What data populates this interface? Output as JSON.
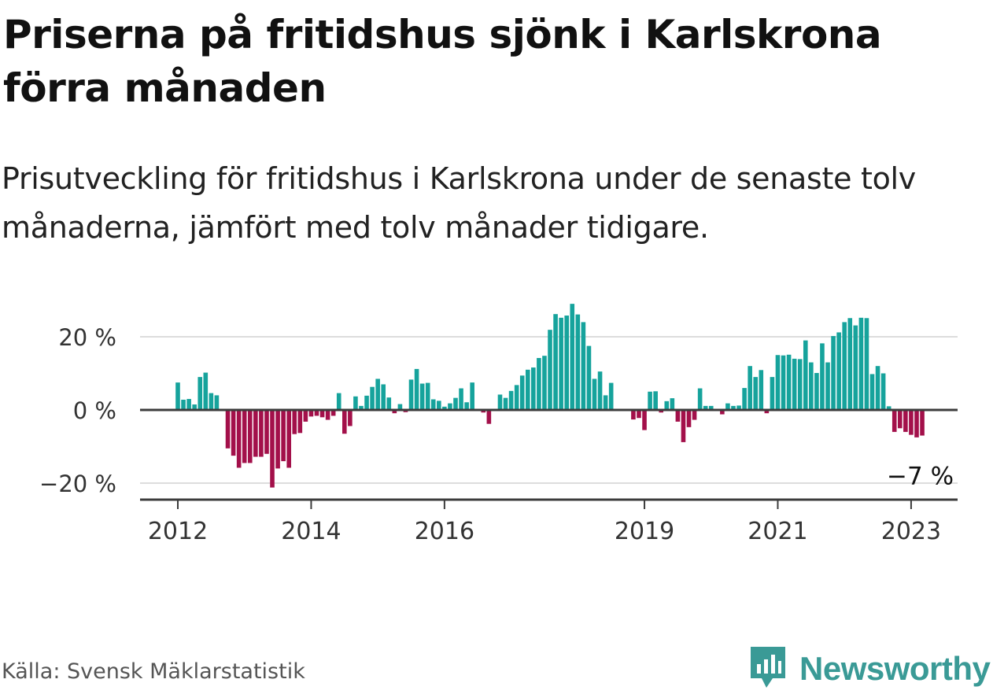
{
  "title": "Priserna på fritidshus sjönk i Karlskrona förra månaden",
  "subtitle": "Prisutveckling för fritidshus i Karlskrona under de senaste tolv månaderna, jämfört med tolv månader tidigare.",
  "source": "Källa: Svensk Mäklarstatistik",
  "brand": "Newsworthy",
  "colors": {
    "positive": "#16a39c",
    "negative": "#a3104a",
    "brand": "#3a9a96"
  },
  "icons": {
    "brand_logo": "bar-chart-speech-bubble-icon"
  },
  "chart_data": {
    "type": "bar",
    "title": "",
    "xlabel": "",
    "ylabel": "",
    "ylim": [
      -25,
      30
    ],
    "yticks": [
      {
        "value": 20,
        "label": "20 %"
      },
      {
        "value": 0,
        "label": "0 %"
      },
      {
        "value": -20,
        "label": "−20 %"
      }
    ],
    "xticks": [
      "2012",
      "2014",
      "2016",
      "2019",
      "2021",
      "2023"
    ],
    "start_month": "2012-01",
    "grid": true,
    "last_label": "−7 %",
    "values": [
      7.5,
      2.8,
      3.0,
      1.5,
      9.0,
      10.2,
      4.6,
      4.0,
      null,
      -10.5,
      -12.5,
      -15.8,
      -14.5,
      -14.5,
      -12.8,
      -12.8,
      -12.0,
      -21.2,
      -16.0,
      -14.0,
      -15.8,
      -6.6,
      -6.3,
      -3.2,
      -1.8,
      -1.6,
      -2.0,
      -2.7,
      -1.6,
      4.6,
      -6.5,
      -4.4,
      3.7,
      1.1,
      3.9,
      6.3,
      8.5,
      7.0,
      3.4,
      -0.9,
      1.6,
      -0.6,
      8.3,
      11.2,
      7.2,
      7.4,
      2.9,
      2.5,
      0.9,
      1.8,
      3.3,
      5.9,
      2.1,
      7.5,
      null,
      -0.7,
      -3.8,
      null,
      4.2,
      3.3,
      5.2,
      6.8,
      9.4,
      11.0,
      11.6,
      14.2,
      14.8,
      21.9,
      26.2,
      25.2,
      25.8,
      29.0,
      26.1,
      24.0,
      17.5,
      8.5,
      10.5,
      4.0,
      7.4,
      null,
      null,
      null,
      -2.6,
      -2.2,
      -5.5,
      5.0,
      5.1,
      -0.7,
      2.4,
      3.2,
      -3.2,
      -8.8,
      -4.7,
      -2.7,
      5.9,
      1.1,
      1.1,
      null,
      -1.2,
      1.8,
      1.1,
      1.2,
      6.0,
      12.0,
      9.0,
      10.9,
      -0.9,
      9.0,
      15.0,
      14.9,
      15.1,
      14.0,
      13.9,
      19.0,
      13.0,
      10.1,
      18.2,
      13.0,
      20.2,
      21.2,
      24.0,
      25.1,
      23.1,
      25.2,
      25.1,
      9.8,
      12.0,
      10.0,
      1.0,
      -6.0,
      -5.0,
      -6.0,
      -6.8,
      -7.5,
      -7.0
    ]
  }
}
